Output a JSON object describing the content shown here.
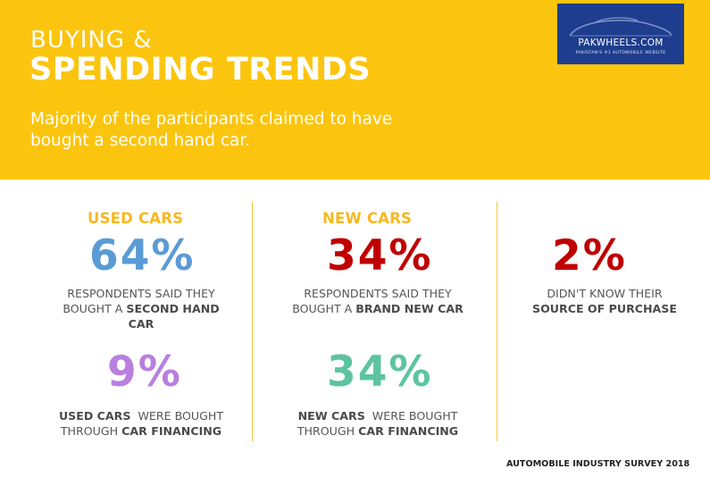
{
  "header": {
    "title_line1": "BUYING &",
    "title_line2": "SPENDING TRENDS",
    "subtitle_line1": "Majority of the participants claimed to have",
    "subtitle_line2": "bought a second hand car."
  },
  "logo": {
    "text": "PAKWHEELS.COM",
    "tagline": "PAKISTAN'S #1 AUTOMOBILE WEBSITE",
    "bg_color": "#1F3D8E"
  },
  "colors": {
    "banner": "#FBC50F",
    "used_heading": "#F7B81F",
    "stat_blue": "#5B9BD5",
    "stat_red": "#C00000",
    "stat_purple": "#B87FE0",
    "stat_green": "#5CC4A0"
  },
  "stats": {
    "used": {
      "heading": "USED CARS",
      "percent": "64%",
      "desc_line1": "RESPONDENTS SAID THEY",
      "desc_line2_plain": "BOUGHT A ",
      "desc_line2_bold": "SECOND HAND",
      "desc_line3_bold": "CAR"
    },
    "used_financing": {
      "percent": "9%",
      "desc_line1_bold": "USED CARS",
      "desc_line1_plain": "  WERE BOUGHT",
      "desc_line2_plain": "THROUGH ",
      "desc_line2_bold": "CAR FINANCING"
    },
    "new": {
      "heading": "NEW CARS",
      "percent": "34%",
      "desc_line1": "RESPONDENTS SAID THEY",
      "desc_line2_plain": "BOUGHT A ",
      "desc_line2_bold": "BRAND NEW CAR"
    },
    "new_financing": {
      "percent": "34%",
      "desc_line1_bold": "NEW CARS",
      "desc_line1_plain": "  WERE BOUGHT",
      "desc_line2_plain": "THROUGH ",
      "desc_line2_bold": "CAR FINANCING"
    },
    "unknown": {
      "percent": "2%",
      "desc_line1": "DIDN'T KNOW THEIR",
      "desc_line2_bold": "SOURCE OF PURCHASE"
    }
  },
  "footer": "AUTOMOBILE INDUSTRY SURVEY 2018"
}
